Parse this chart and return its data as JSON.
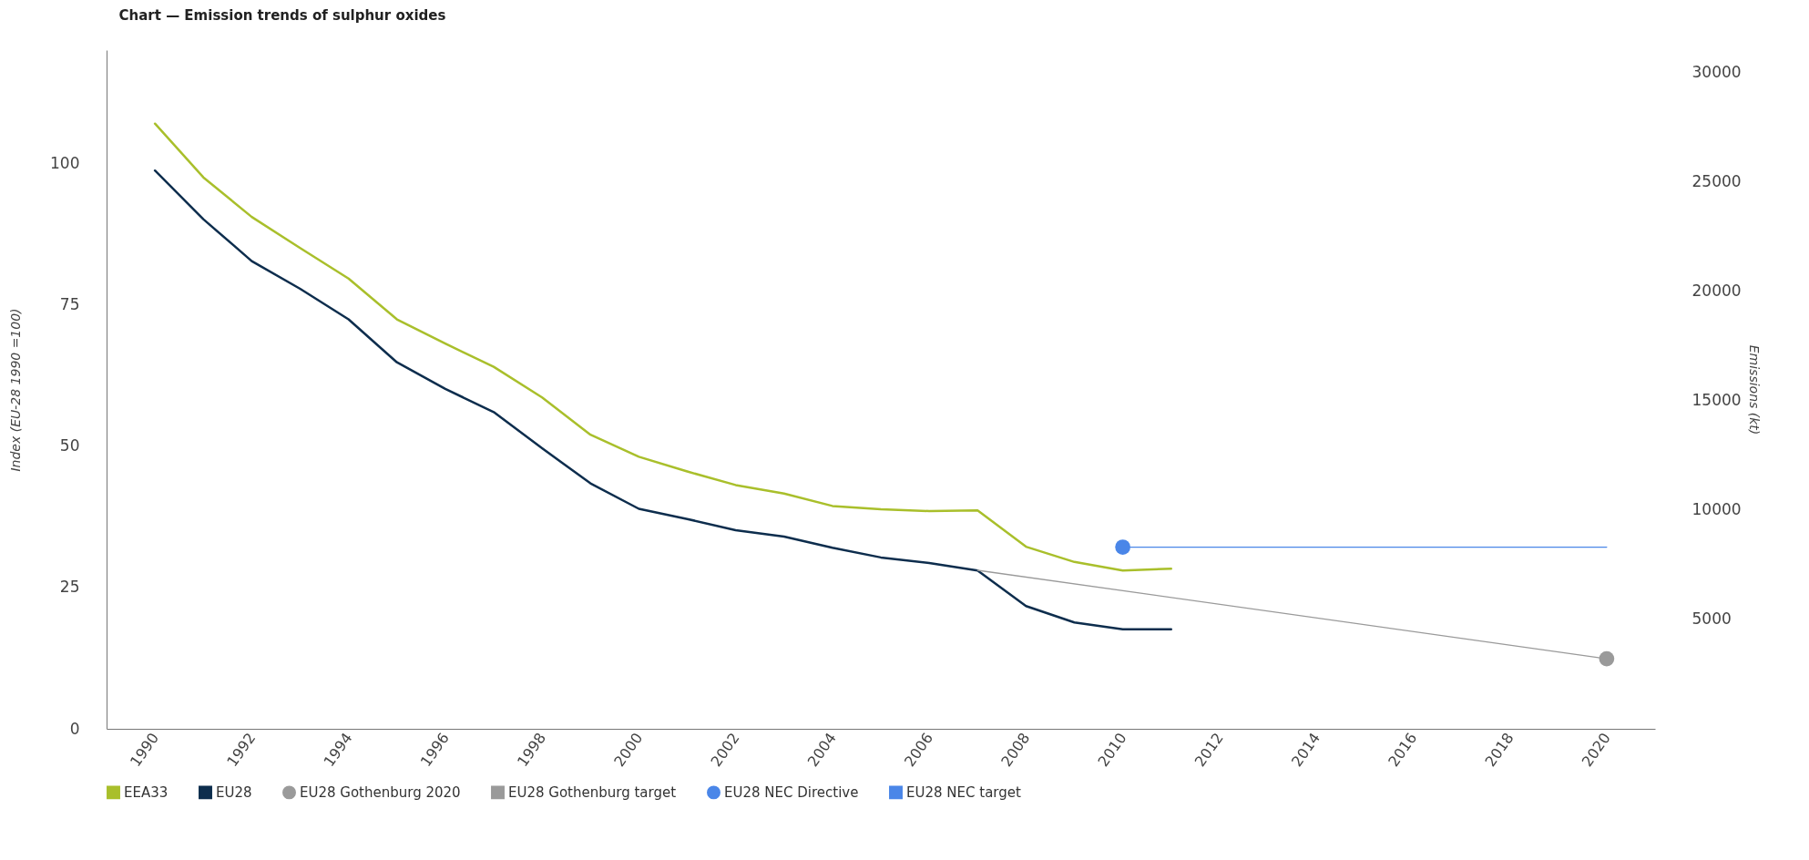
{
  "chart_data": {
    "type": "line",
    "title": "Chart — Emission trends of sulphur oxides",
    "ylabel": "Index (EU-28 1990 =100)",
    "y2label": "Emissions (kt)",
    "x": [
      1990,
      1991,
      1992,
      1993,
      1994,
      1995,
      1996,
      1997,
      1998,
      1999,
      2000,
      2001,
      2002,
      2003,
      2004,
      2005,
      2006,
      2007,
      2008,
      2009,
      2010,
      2011
    ],
    "series": [
      {
        "name": "EEA33",
        "color": "#a9bf2b",
        "values": [
          107.0,
          97.5,
          90.5,
          85.0,
          79.6,
          72.4,
          68.1,
          64.0,
          58.6,
          52.0,
          48.1,
          45.5,
          43.1,
          41.6,
          39.4,
          38.8,
          38.5,
          38.6,
          32.2,
          29.5,
          28.0,
          28.3
        ]
      },
      {
        "name": "EU28",
        "color": "#0d2d4d",
        "values": [
          98.7,
          90.1,
          82.7,
          77.8,
          72.4,
          64.8,
          60.1,
          56.0,
          49.6,
          43.4,
          38.9,
          37.1,
          35.1,
          34.0,
          32.0,
          30.3,
          29.3,
          28.0,
          21.7,
          18.8,
          17.6,
          17.6
        ]
      },
      {
        "name": "EU28 Gothenburg 2020",
        "color": "#9a9a9a",
        "type": "scatter",
        "axis": "y2",
        "x": [
          2020
        ],
        "values": [
          3200
        ]
      },
      {
        "name": "EU28 Gothenburg target",
        "color": "#9a9a9a",
        "type": "line",
        "axis": "y2",
        "x": [
          2007,
          2020
        ],
        "values": [
          7240,
          3200
        ]
      },
      {
        "name": "EU28 NEC Directive",
        "color": "#4a86e8",
        "type": "scatter",
        "axis": "y2",
        "x": [
          2010
        ],
        "values": [
          8300
        ]
      },
      {
        "name": "EU28 NEC target",
        "color": "#4a86e8",
        "type": "line",
        "axis": "y2",
        "x": [
          2010,
          2020
        ],
        "values": [
          8300,
          8300
        ]
      }
    ],
    "xlim": [
      1989,
      2021
    ],
    "xticks": [
      1990,
      1992,
      1994,
      1996,
      1998,
      2000,
      2002,
      2004,
      2006,
      2008,
      2010,
      2012,
      2014,
      2016,
      2018,
      2020
    ],
    "ylim": [
      0,
      120
    ],
    "yticks": [
      0,
      25,
      50,
      75,
      100
    ],
    "y2lim": [
      0,
      31000
    ],
    "y2ticks": [
      5000,
      10000,
      15000,
      20000,
      25000,
      30000
    ],
    "legend": "bottom"
  }
}
